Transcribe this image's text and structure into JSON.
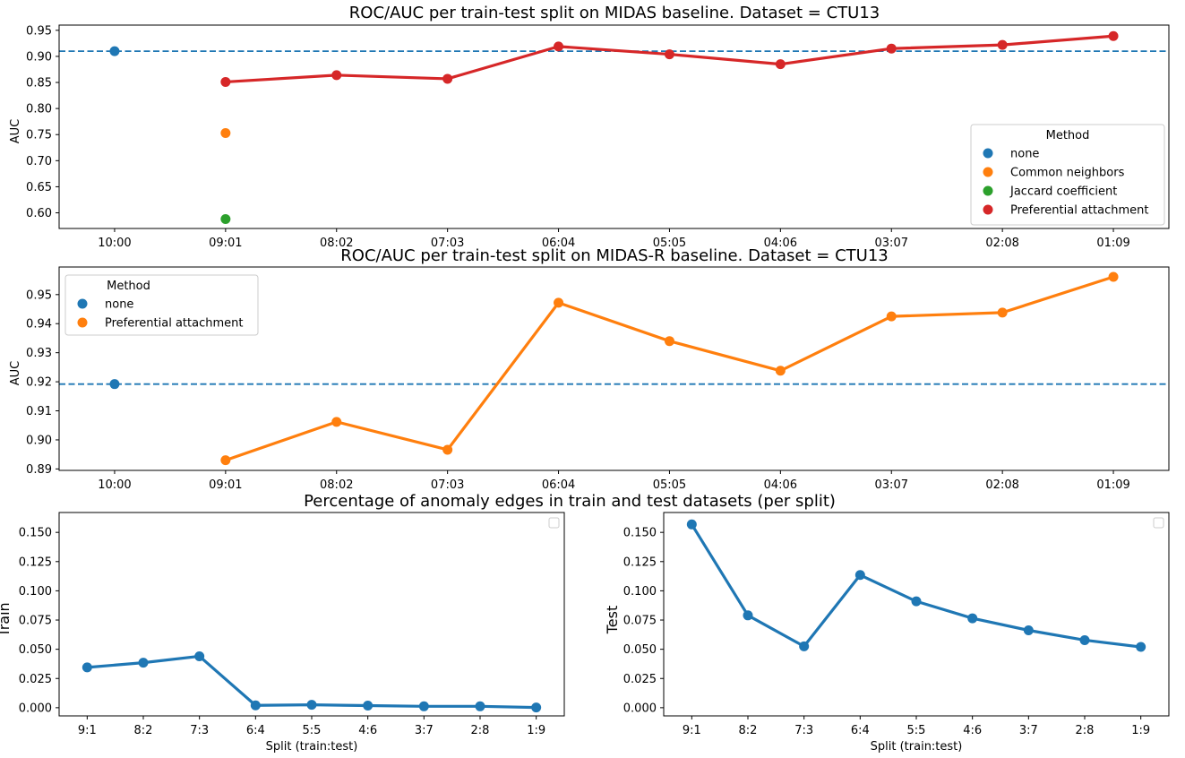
{
  "colors": {
    "none": "#1f77b4",
    "common_neighbors": "#ff7f0e",
    "jaccard": "#2ca02c",
    "preferential": "#d62728",
    "line": "#1f77b4"
  },
  "chart_data": [
    {
      "type": "line",
      "title": "ROC/AUC per train-test split on MIDAS baseline. Dataset = CTU13",
      "xlabel": "",
      "ylabel": "AUC",
      "categories": [
        "10:00",
        "09:01",
        "08:02",
        "07:03",
        "06:04",
        "05:05",
        "04:06",
        "03:07",
        "02:08",
        "01:09"
      ],
      "yticks": [
        "0.60",
        "0.65",
        "0.70",
        "0.75",
        "0.80",
        "0.85",
        "0.90",
        "0.95"
      ],
      "ylim": [
        0.57,
        0.96
      ],
      "baseline": 0.91,
      "legend_title": "Method",
      "legend_position": "lower right",
      "series": [
        {
          "name": "none",
          "color_key": "none",
          "line": false,
          "values": [
            0.91,
            null,
            null,
            null,
            null,
            null,
            null,
            null,
            null,
            null
          ]
        },
        {
          "name": "Common neighbors",
          "color_key": "common_neighbors",
          "line": false,
          "values": [
            null,
            0.753,
            null,
            null,
            null,
            null,
            null,
            null,
            null,
            null
          ]
        },
        {
          "name": "Jaccard coefficient",
          "color_key": "jaccard",
          "line": false,
          "values": [
            null,
            0.588,
            null,
            null,
            null,
            null,
            null,
            null,
            null,
            null
          ]
        },
        {
          "name": "Preferential attachment",
          "color_key": "preferential",
          "line": true,
          "values": [
            null,
            0.851,
            0.864,
            0.857,
            0.919,
            0.904,
            0.885,
            0.915,
            0.922,
            0.939
          ]
        }
      ]
    },
    {
      "type": "line",
      "title": "ROC/AUC per train-test split on MIDAS-R baseline. Dataset = CTU13",
      "xlabel": "",
      "ylabel": "AUC",
      "categories": [
        "10:00",
        "09:01",
        "08:02",
        "07:03",
        "06:04",
        "05:05",
        "04:06",
        "03:07",
        "02:08",
        "01:09"
      ],
      "yticks": [
        "0.89",
        "0.90",
        "0.91",
        "0.92",
        "0.93",
        "0.94",
        "0.95"
      ],
      "ylim": [
        0.8895,
        0.9595
      ],
      "baseline": 0.9192,
      "legend_title": "Method",
      "legend_position": "upper left",
      "series": [
        {
          "name": "none",
          "color_key": "none",
          "line": false,
          "values": [
            0.9192,
            null,
            null,
            null,
            null,
            null,
            null,
            null,
            null,
            null
          ]
        },
        {
          "name": "Preferential attachment",
          "color_key": "common_neighbors",
          "line": true,
          "values": [
            null,
            0.893,
            0.9062,
            0.8966,
            0.9472,
            0.934,
            0.9238,
            0.9425,
            0.9438,
            0.9561
          ]
        }
      ]
    },
    {
      "type": "line",
      "title": "Percentage of anomaly edges in train and test datasets (per split)",
      "xlabel": "Split (train:test)",
      "ylabel": "Train",
      "categories": [
        "9:1",
        "8:2",
        "7:3",
        "6:4",
        "5:5",
        "4:6",
        "3:7",
        "2:8",
        "1:9"
      ],
      "yticks": [
        "0.000",
        "0.025",
        "0.050",
        "0.075",
        "0.100",
        "0.125",
        "0.150"
      ],
      "ylim": [
        -0.007,
        0.167
      ],
      "series": [
        {
          "color_key": "line",
          "line": true,
          "values": [
            0.0345,
            0.0385,
            0.044,
            0.002,
            0.0025,
            0.0018,
            0.0012,
            0.0012,
            0.0002
          ]
        }
      ]
    },
    {
      "type": "line",
      "title": "",
      "xlabel": "Split (train:test)",
      "ylabel": "Test",
      "categories": [
        "9:1",
        "8:2",
        "7:3",
        "6:4",
        "5:5",
        "4:6",
        "3:7",
        "2:8",
        "1:9"
      ],
      "yticks": [
        "0.000",
        "0.025",
        "0.050",
        "0.075",
        "0.100",
        "0.125",
        "0.150"
      ],
      "ylim": [
        -0.007,
        0.167
      ],
      "series": [
        {
          "color_key": "line",
          "line": true,
          "values": [
            0.1568,
            0.079,
            0.0525,
            0.1135,
            0.091,
            0.0765,
            0.0662,
            0.0578,
            0.052
          ]
        }
      ]
    }
  ]
}
